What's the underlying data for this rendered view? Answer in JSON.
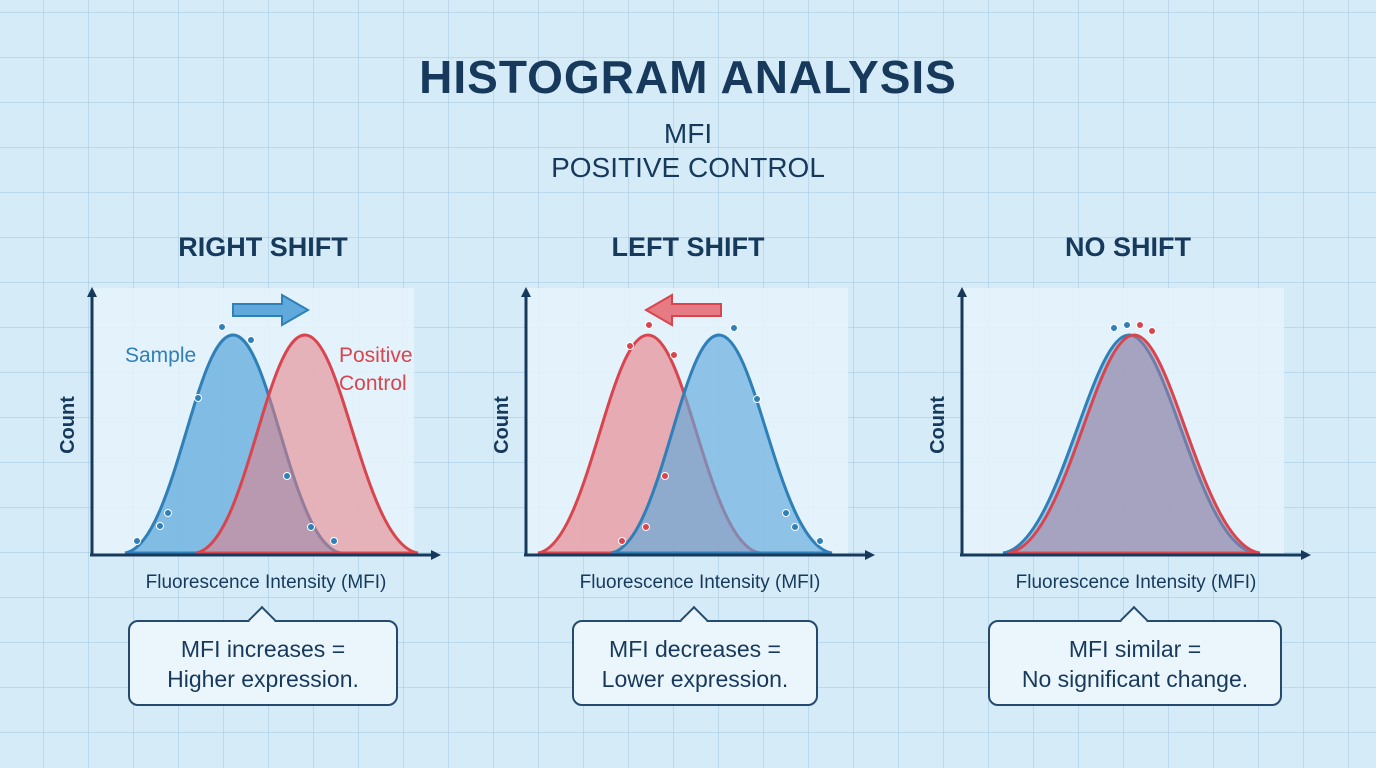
{
  "title": "HISTOGRAM ANALYSIS",
  "subtitle_line1": "MFI",
  "subtitle_line2": "POSITIVE CONTROL",
  "colors": {
    "sample": "#2f7fb8",
    "control": "#d9454f",
    "axis": "#173a5c"
  },
  "panels": [
    {
      "title": "RIGHT SHIFT",
      "ylabel": "Count",
      "xlabel": "Fluorescence Intensity (MFI)",
      "sample_label": "Sample",
      "control_label_1": "Positive",
      "control_label_2": "Control",
      "arrow": "right",
      "callout_line1": "MFI increases =",
      "callout_line2": "Higher expression."
    },
    {
      "title": "LEFT SHIFT",
      "ylabel": "Count",
      "xlabel": "Fluorescence Intensity (MFI)",
      "arrow": "left",
      "callout_line1": "MFI decreases =",
      "callout_line2": "Lower expression."
    },
    {
      "title": "NO SHIFT",
      "ylabel": "Count",
      "xlabel": "Fluorescence Intensity (MFI)",
      "callout_line1": "MFI similar =",
      "callout_line2": "No significant change."
    }
  ]
}
